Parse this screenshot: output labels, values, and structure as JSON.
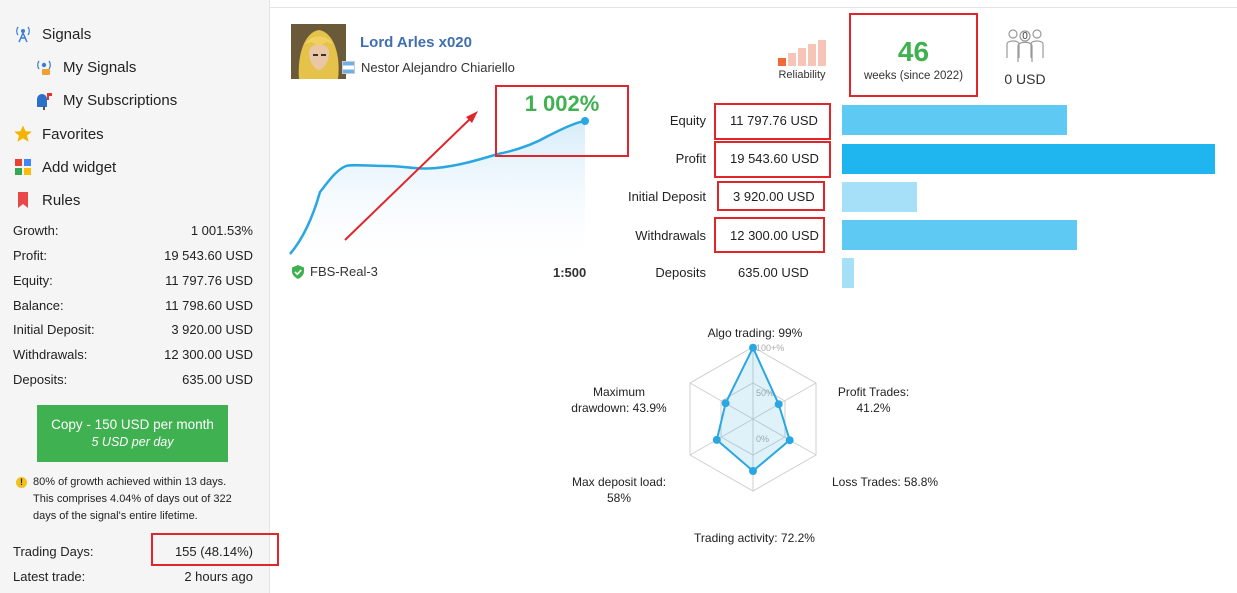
{
  "sidebar": {
    "nav": [
      {
        "label": "Signals",
        "icon": "signals-antenna-icon"
      },
      {
        "label": "My Signals",
        "icon": "my-signals-icon"
      },
      {
        "label": "My Subscriptions",
        "icon": "mailbox-icon"
      },
      {
        "label": "Favorites",
        "icon": "star-icon"
      },
      {
        "label": "Add widget",
        "icon": "widget-icon"
      },
      {
        "label": "Rules",
        "icon": "bookmark-icon"
      }
    ],
    "stats": [
      {
        "label": "Growth:",
        "value": "1 001.53%"
      },
      {
        "label": "Profit:",
        "value": "19 543.60 USD"
      },
      {
        "label": "Equity:",
        "value": "11 797.76 USD"
      },
      {
        "label": "Balance:",
        "value": "11 798.60 USD"
      },
      {
        "label": "Initial Deposit:",
        "value": "3 920.00 USD"
      },
      {
        "label": "Withdrawals:",
        "value": "12 300.00 USD"
      },
      {
        "label": "Deposits:",
        "value": "635.00 USD"
      }
    ],
    "copy_button": {
      "line1": "Copy - 150 USD per month",
      "line2": "5 USD per day"
    },
    "note": {
      "line1": "80% of growth achieved within 13 days.",
      "line2": "This comprises 4.04% of days out of 322",
      "line3": "days of the signal's entire lifetime."
    },
    "trading_days": {
      "label": "Trading Days:",
      "value": "155 (48.14%)"
    },
    "latest_trade": {
      "label": "Latest trade:",
      "value": "2 hours ago"
    }
  },
  "header": {
    "title": "Lord Arles x020",
    "author": "Nestor Alejandro Chiariello",
    "reliability_label": "Reliability",
    "weeks_value": "46",
    "weeks_label": "weeks (since 2022)",
    "subscribers_count": "0",
    "subscribers_value": "0 USD"
  },
  "chart": {
    "growth_label": "1 002%",
    "account": "FBS-Real-3",
    "leverage": "1:500",
    "line_color": "#2aa7e0"
  },
  "balances": [
    {
      "label": "Equity",
      "value": "11 797.76 USD",
      "amount": 11797.76,
      "color": "#5ec9f3"
    },
    {
      "label": "Profit",
      "value": "19 543.60 USD",
      "amount": 19543.6,
      "color": "#1fb5ee"
    },
    {
      "label": "Initial Deposit",
      "value": "3 920.00 USD",
      "amount": 3920.0,
      "color": "#a6e0f8"
    },
    {
      "label": "Withdrawals",
      "value": "12 300.00 USD",
      "amount": 12300.0,
      "color": "#5ec9f3"
    },
    {
      "label": "Deposits",
      "value": "635.00 USD",
      "amount": 635.0,
      "color": "#a6e0f8"
    }
  ],
  "radar": {
    "algo": "Algo trading: 99%",
    "profit_l1": "Profit Trades:",
    "profit_l2": "41.2%",
    "loss": "Loss Trades: 58.8%",
    "activity": "Trading activity: 72.2%",
    "load_l1": "Max deposit load:",
    "load_l2": "58%",
    "dd_l1": "Maximum",
    "dd_l2": "drawdown: 43.9%",
    "tick_100": "100+%",
    "tick_50": "50%",
    "tick_0": "0%",
    "values": [
      99,
      41.2,
      58.8,
      72.2,
      58,
      43.9
    ]
  }
}
